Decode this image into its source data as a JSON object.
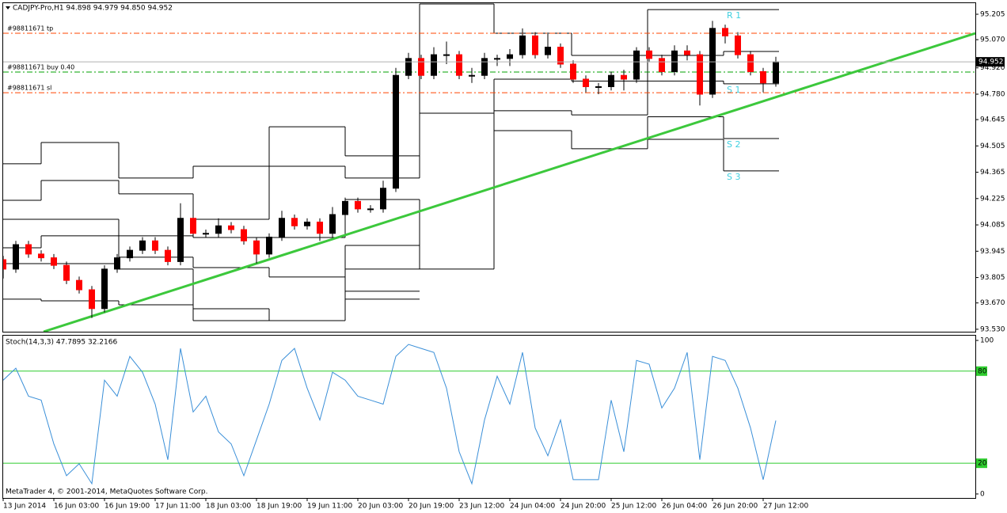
{
  "chart_data": [
    {
      "type": "candlestick",
      "title": "CADJPY-Pro,H1  94.898 94.979 94.850 94.952",
      "x": [
        0,
        4,
        8,
        12,
        16,
        20,
        24,
        28,
        32,
        36,
        40,
        44,
        48,
        52,
        56,
        60,
        64,
        68,
        72,
        76,
        80,
        84,
        88,
        92,
        96,
        100,
        104,
        108,
        112,
        116,
        120,
        124,
        128,
        132,
        136,
        140,
        144,
        148,
        152,
        156,
        160,
        164,
        168,
        172,
        176,
        180,
        184,
        188,
        192,
        196,
        200,
        204,
        208,
        212,
        216,
        220,
        224,
        228,
        232,
        236,
        240,
        244
      ],
      "open": [
        93.9,
        93.85,
        93.98,
        93.93,
        93.91,
        93.87,
        93.79,
        93.74,
        93.64,
        93.85,
        93.91,
        93.95,
        94.0,
        93.95,
        93.89,
        94.12,
        94.04,
        94.04,
        94.08,
        94.06,
        94.0,
        93.93,
        94.02,
        94.12,
        94.08,
        94.1,
        94.04,
        94.14,
        94.21,
        94.17,
        94.17,
        94.28,
        94.88,
        94.97,
        94.88,
        94.99,
        94.99,
        94.88,
        94.88,
        94.97,
        94.97,
        94.99,
        95.09,
        94.99,
        95.03,
        94.94,
        94.86,
        94.82,
        94.82,
        94.88,
        94.86,
        95.01,
        94.97,
        94.9,
        95.01,
        94.99,
        94.78,
        95.13,
        95.09,
        94.99,
        94.9,
        94.84
      ],
      "high": [
        93.92,
        94.0,
        94.0,
        93.95,
        93.93,
        93.89,
        93.81,
        93.76,
        93.87,
        93.93,
        93.97,
        94.02,
        94.02,
        93.97,
        94.2,
        94.14,
        94.06,
        94.12,
        94.1,
        94.08,
        94.02,
        94.04,
        94.16,
        94.14,
        94.12,
        94.12,
        94.18,
        94.23,
        94.23,
        94.19,
        94.32,
        94.92,
        95.0,
        94.99,
        95.03,
        95.06,
        95.01,
        94.92,
        95.0,
        94.99,
        95.02,
        95.13,
        95.11,
        95.1,
        95.05,
        94.96,
        94.88,
        94.84,
        94.9,
        94.91,
        95.03,
        95.03,
        94.99,
        95.04,
        95.04,
        95.01,
        95.17,
        95.15,
        95.11,
        95.01,
        94.92,
        94.979
      ],
      "low": [
        93.8,
        93.83,
        93.91,
        93.89,
        93.85,
        93.77,
        93.72,
        93.59,
        93.62,
        93.83,
        93.89,
        93.93,
        93.93,
        93.87,
        93.87,
        94.02,
        94.02,
        94.02,
        94.04,
        93.98,
        93.88,
        93.91,
        94.0,
        94.06,
        94.06,
        94.0,
        94.02,
        94.12,
        94.15,
        94.15,
        94.15,
        94.26,
        94.86,
        94.86,
        94.86,
        94.94,
        94.86,
        94.84,
        94.86,
        94.93,
        94.93,
        94.97,
        94.97,
        94.97,
        94.92,
        94.84,
        94.79,
        94.78,
        94.8,
        94.8,
        94.84,
        94.95,
        94.88,
        94.88,
        94.96,
        94.72,
        94.76,
        95.05,
        94.97,
        94.88,
        94.79,
        94.82
      ],
      "close": [
        93.85,
        93.98,
        93.93,
        93.91,
        93.87,
        93.79,
        93.74,
        93.64,
        93.85,
        93.91,
        93.95,
        94.0,
        93.95,
        93.89,
        94.12,
        94.04,
        94.04,
        94.08,
        94.06,
        94.0,
        93.93,
        94.02,
        94.12,
        94.08,
        94.1,
        94.04,
        94.14,
        94.21,
        94.17,
        94.17,
        94.28,
        94.88,
        94.97,
        94.88,
        94.99,
        94.99,
        94.88,
        94.88,
        94.97,
        94.97,
        94.99,
        95.09,
        94.99,
        95.03,
        94.94,
        94.86,
        94.82,
        94.82,
        94.88,
        94.86,
        95.01,
        94.97,
        94.9,
        95.01,
        94.99,
        94.78,
        95.13,
        95.09,
        94.99,
        94.9,
        94.84,
        94.952
      ],
      "up_color": "#000000",
      "down_color": "#ff0000",
      "xlim": [
        0,
        307
      ],
      "ylim": [
        93.517,
        95.264
      ],
      "yticks": [
        95.205,
        {
          "value": 95.07,
          "label": "95.070"
        },
        {
          "value": 94.92,
          "label": "94.920"
        },
        {
          "value": 94.78,
          "label": "94.780"
        },
        94.645,
        {
          "value": 94.505,
          "label": "94.505"
        },
        94.365,
        94.225,
        94.085,
        93.945,
        93.805,
        {
          "value": 93.67,
          "label": "93.670"
        },
        {
          "value": 93.53,
          "label": "93.530"
        }
      ],
      "last_price": 94.952,
      "orders": [
        {
          "label": "#98811671 tp",
          "price": 95.104,
          "color": "#ff4500"
        },
        {
          "label": "#98811671 buy 0.40",
          "price": 94.898,
          "color": "#00a000"
        },
        {
          "label": "#98811671 sl",
          "price": 94.788,
          "color": "#ff4500"
        }
      ],
      "trendline": {
        "x": [
          12.75,
          307
        ],
        "y": [
          93.517,
          95.104
        ],
        "color": "#3cc83c"
      },
      "pivots": {
        "color": "#000000",
        "label_color": "#40d0e0",
        "segments": [
          {
            "from": 0,
            "to": 12,
            "levels": [
              94.41,
              94.216,
              94.115,
              93.963,
              93.879,
              93.69
            ]
          },
          {
            "from": 12,
            "to": 36.5,
            "levels": [
              94.523,
              94.321,
              94.115,
              94.027,
              93.879,
              93.681
            ]
          },
          {
            "from": 36.5,
            "to": 60,
            "levels": [
              94.334,
              94.25,
              94.027,
              93.913,
              93.85,
              93.66
            ]
          },
          {
            "from": 60,
            "to": 84,
            "levels": [
              94.397,
              94.115,
              94.018,
              93.858,
              93.639,
              93.576
            ]
          },
          {
            "from": 84,
            "to": 108,
            "levels": [
              94.607,
              94.397,
              94.018,
              93.808,
              93.576
            ]
          },
          {
            "from": 108,
            "to": 131.5,
            "levels": [
              94.452,
              94.334,
              94.22,
              93.976,
              93.85,
              93.732,
              93.69
            ]
          },
          {
            "from": 131.5,
            "to": 155,
            "levels": [
              95.26,
              94.679,
              93.85
            ]
          },
          {
            "from": 155,
            "to": 179.5,
            "levels": [
              95.104,
              94.86,
              94.692,
              94.586
            ]
          },
          {
            "from": 179.5,
            "to": 203.5,
            "levels": [
              94.986,
              94.85,
              94.67,
              94.49
            ]
          },
          {
            "from": 203.5,
            "to": 227.5,
            "levels": [
              95.23,
              94.986,
              94.85,
              94.66,
              94.54
            ]
          },
          {
            "from": 227.5,
            "to": 245,
            "levels": [
              95.23,
              95.007,
              94.835,
              94.544,
              94.372
            ],
            "names": [
              "R 1",
              null,
              "S 1",
              "S 2",
              "S 3"
            ]
          }
        ]
      }
    },
    {
      "type": "line",
      "title": "Stoch(14,3,3) 47.7895 32.2166",
      "x": [
        0,
        4,
        8,
        12,
        16,
        20,
        24,
        28,
        32,
        36,
        40,
        44,
        48,
        52,
        56,
        60,
        64,
        68,
        72,
        76,
        80,
        84,
        88,
        92,
        96,
        100,
        104,
        108,
        112,
        116,
        120,
        124,
        128,
        132,
        136,
        140,
        144,
        148,
        152,
        156,
        160,
        164,
        168,
        172,
        176,
        180,
        184,
        188,
        192,
        196,
        200,
        204,
        208,
        212,
        216,
        220,
        224,
        228,
        232,
        236,
        240,
        244
      ],
      "values": [
        74.1,
        81.9,
        63.7,
        61.1,
        32.6,
        11.9,
        19.7,
        6.7,
        74.1,
        63.7,
        89.6,
        79.3,
        58.5,
        22.3,
        94.8,
        53.4,
        63.7,
        40.4,
        32.6,
        11.9,
        35.2,
        58.5,
        87.0,
        94.8,
        68.9,
        48.2,
        79.3,
        74.1,
        63.7,
        61.1,
        58.5,
        89.6,
        97.4,
        94.8,
        92.2,
        68.9,
        27.5,
        6.7,
        48.2,
        76.7,
        58.5,
        92.2,
        43.0,
        24.9,
        48.2,
        9.3,
        9.3,
        9.3,
        61.1,
        27.5,
        87.0,
        84.5,
        56.0,
        68.9,
        92.2,
        22.3,
        89.6,
        87.0,
        68.9,
        43.0,
        9.3,
        47.7895
      ],
      "color": "#3a8fd8",
      "xlim": [
        0,
        307
      ],
      "ylim": [
        -2.6,
        103.1
      ],
      "yticks": [
        100,
        0
      ],
      "levels": [
        80,
        20
      ],
      "level_color": "#2ecc2e",
      "xticks": [
        {
          "value": 0,
          "label": "13 Jun 2014"
        },
        {
          "value": 16,
          "label": "16 Jun 03:00"
        },
        {
          "value": 32,
          "label": "16 Jun 19:00"
        },
        {
          "value": 48,
          "label": "17 Jun 11:00"
        },
        {
          "value": 64,
          "label": "18 Jun 03:00"
        },
        {
          "value": 80,
          "label": "18 Jun 19:00"
        },
        {
          "value": 96,
          "label": "19 Jun 11:00"
        },
        {
          "value": 112,
          "label": "20 Jun 03:00"
        },
        {
          "value": 128,
          "label": "20 Jun 19:00"
        },
        {
          "value": 144,
          "label": "23 Jun 12:00"
        },
        {
          "value": 160,
          "label": "24 Jun 04:00"
        },
        {
          "value": 176,
          "label": "24 Jun 20:00"
        },
        {
          "value": 192,
          "label": "25 Jun 12:00"
        },
        {
          "value": 208,
          "label": "26 Jun 04:00"
        },
        {
          "value": 224,
          "label": "26 Jun 20:00"
        },
        {
          "value": 240,
          "label": "27 Jun 12:00"
        }
      ]
    }
  ],
  "footer": "MetaTrader 4, © 2001-2014, MetaQuotes Software Corp."
}
